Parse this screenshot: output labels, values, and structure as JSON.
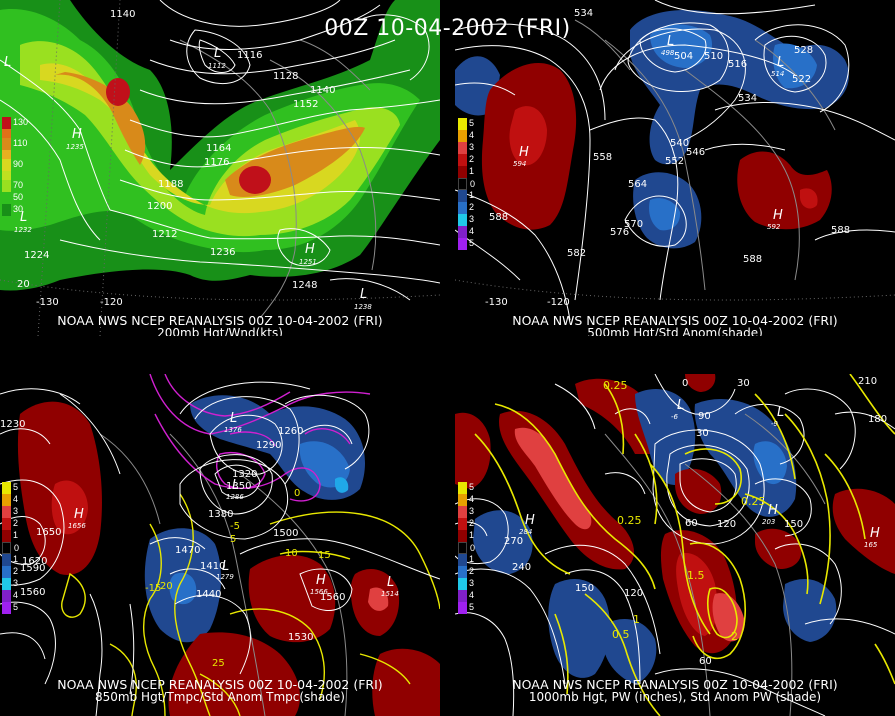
{
  "title": "00Z 10-04-2002 (FRI)",
  "panels": [
    {
      "caption_line1": "NOAA NWS NCEP REANALYSIS 00Z 10-04-2002 (FRI)",
      "caption_line2": "200mb Hgt/Wnd(kts)",
      "colorbar": [
        {
          "label": "130",
          "color": "#c0101a"
        },
        {
          "label": "110",
          "color": "#d88a1a"
        },
        {
          "label": "90",
          "color": "#d8d820"
        },
        {
          "label": "70",
          "color": "#9ae020"
        },
        {
          "label": "50",
          "color": "#30c020"
        },
        {
          "label": "30",
          "color": "#189018"
        }
      ],
      "contour_labels": [
        "1140",
        "1116",
        "1128",
        "1140",
        "1152",
        "1164",
        "1176",
        "1188",
        "1200",
        "1212",
        "1224",
        "1236",
        "1248"
      ],
      "highs": [
        "1235",
        "1251"
      ],
      "lows": [
        "1112",
        "1232",
        "1238"
      ],
      "lon_labels": [
        "-130",
        "-120"
      ],
      "lat_labels": [
        "20"
      ]
    },
    {
      "caption_line1": "NOAA NWS NCEP REANALYSIS 00Z 10-04-2002 (FRI)",
      "caption_line2": "500mb Hgt/Std Anom(shade)",
      "colorbar": [
        {
          "label": "5",
          "color": "#e8e800"
        },
        {
          "label": "4",
          "color": "#e8a000"
        },
        {
          "label": "3",
          "color": "#e04040"
        },
        {
          "label": "2",
          "color": "#c01010"
        },
        {
          "label": "1",
          "color": "#900000"
        },
        {
          "label": "0",
          "color": "#000000"
        },
        {
          "label": "1",
          "color": "#204890"
        },
        {
          "label": "2",
          "color": "#2870c8"
        },
        {
          "label": "3",
          "color": "#20c8e8"
        },
        {
          "label": "4",
          "color": "#8020c8"
        },
        {
          "label": "5",
          "color": "#a020f0"
        }
      ],
      "contour_labels": [
        "534",
        "504",
        "510",
        "516",
        "528",
        "522",
        "534",
        "540",
        "546",
        "552",
        "558",
        "564",
        "570",
        "576",
        "582",
        "588",
        "588",
        "588"
      ],
      "highs": [
        "594",
        "592"
      ],
      "lows": [
        "498",
        "514"
      ],
      "lon_labels": [
        "-130",
        "-120"
      ],
      "lat_labels": []
    },
    {
      "caption_line1": "NOAA NWS NCEP REANALYSIS 00Z 10-04-2002 (FRI)",
      "caption_line2": "850mb Hgt/Tmpc/Std Anom Tmpc(shade)",
      "colorbar": [
        {
          "label": "5",
          "color": "#e8e800"
        },
        {
          "label": "4",
          "color": "#e8a000"
        },
        {
          "label": "3",
          "color": "#e04040"
        },
        {
          "label": "2",
          "color": "#c01010"
        },
        {
          "label": "1",
          "color": "#900000"
        },
        {
          "label": "0",
          "color": "#000000"
        },
        {
          "label": "1",
          "color": "#204890"
        },
        {
          "label": "2",
          "color": "#2870c8"
        },
        {
          "label": "3",
          "color": "#20c8e8"
        },
        {
          "label": "4",
          "color": "#8020c8"
        },
        {
          "label": "5",
          "color": "#a020f0"
        }
      ],
      "contour_labels": [
        "1230",
        "1260",
        "1290",
        "1320",
        "1350",
        "1380",
        "1410",
        "1440",
        "1470",
        "1500",
        "1530",
        "1560",
        "1590",
        "1620",
        "1650",
        "1560"
      ],
      "temp_labels": [
        "-5",
        "0",
        "5",
        "10",
        "15",
        "20",
        "25",
        "-15"
      ],
      "highs": [
        "1656",
        "1566"
      ],
      "lows": [
        "1376",
        "1286",
        "1514",
        "1279"
      ],
      "lon_labels": [],
      "lat_labels": []
    },
    {
      "caption_line1": "NOAA NWS NCEP REANALYSIS 00Z 10-04-2002 (FRI)",
      "caption_line2": "1000mb Hgt, PW (inches), Std Anom PW (shade)",
      "colorbar": [
        {
          "label": "5",
          "color": "#e8e800"
        },
        {
          "label": "4",
          "color": "#e8a000"
        },
        {
          "label": "3",
          "color": "#e04040"
        },
        {
          "label": "2",
          "color": "#c01010"
        },
        {
          "label": "1",
          "color": "#900000"
        },
        {
          "label": "0",
          "color": "#000000"
        },
        {
          "label": "1",
          "color": "#204890"
        },
        {
          "label": "2",
          "color": "#2870c8"
        },
        {
          "label": "3",
          "color": "#20c8e8"
        },
        {
          "label": "4",
          "color": "#8020c8"
        },
        {
          "label": "5",
          "color": "#a020f0"
        }
      ],
      "contour_labels": [
        "0",
        "30",
        "210",
        "180",
        "150",
        "120",
        "90",
        "60",
        "270",
        "240",
        "150",
        "120",
        "60",
        "30"
      ],
      "pw_labels": [
        "0.25",
        "0.5",
        "1",
        "1.5",
        "2",
        "0.25",
        "0.25"
      ],
      "highs": [
        "284",
        "203",
        "165"
      ],
      "lows": [
        "-6",
        "-9"
      ],
      "lon_labels": [],
      "lat_labels": []
    }
  ]
}
